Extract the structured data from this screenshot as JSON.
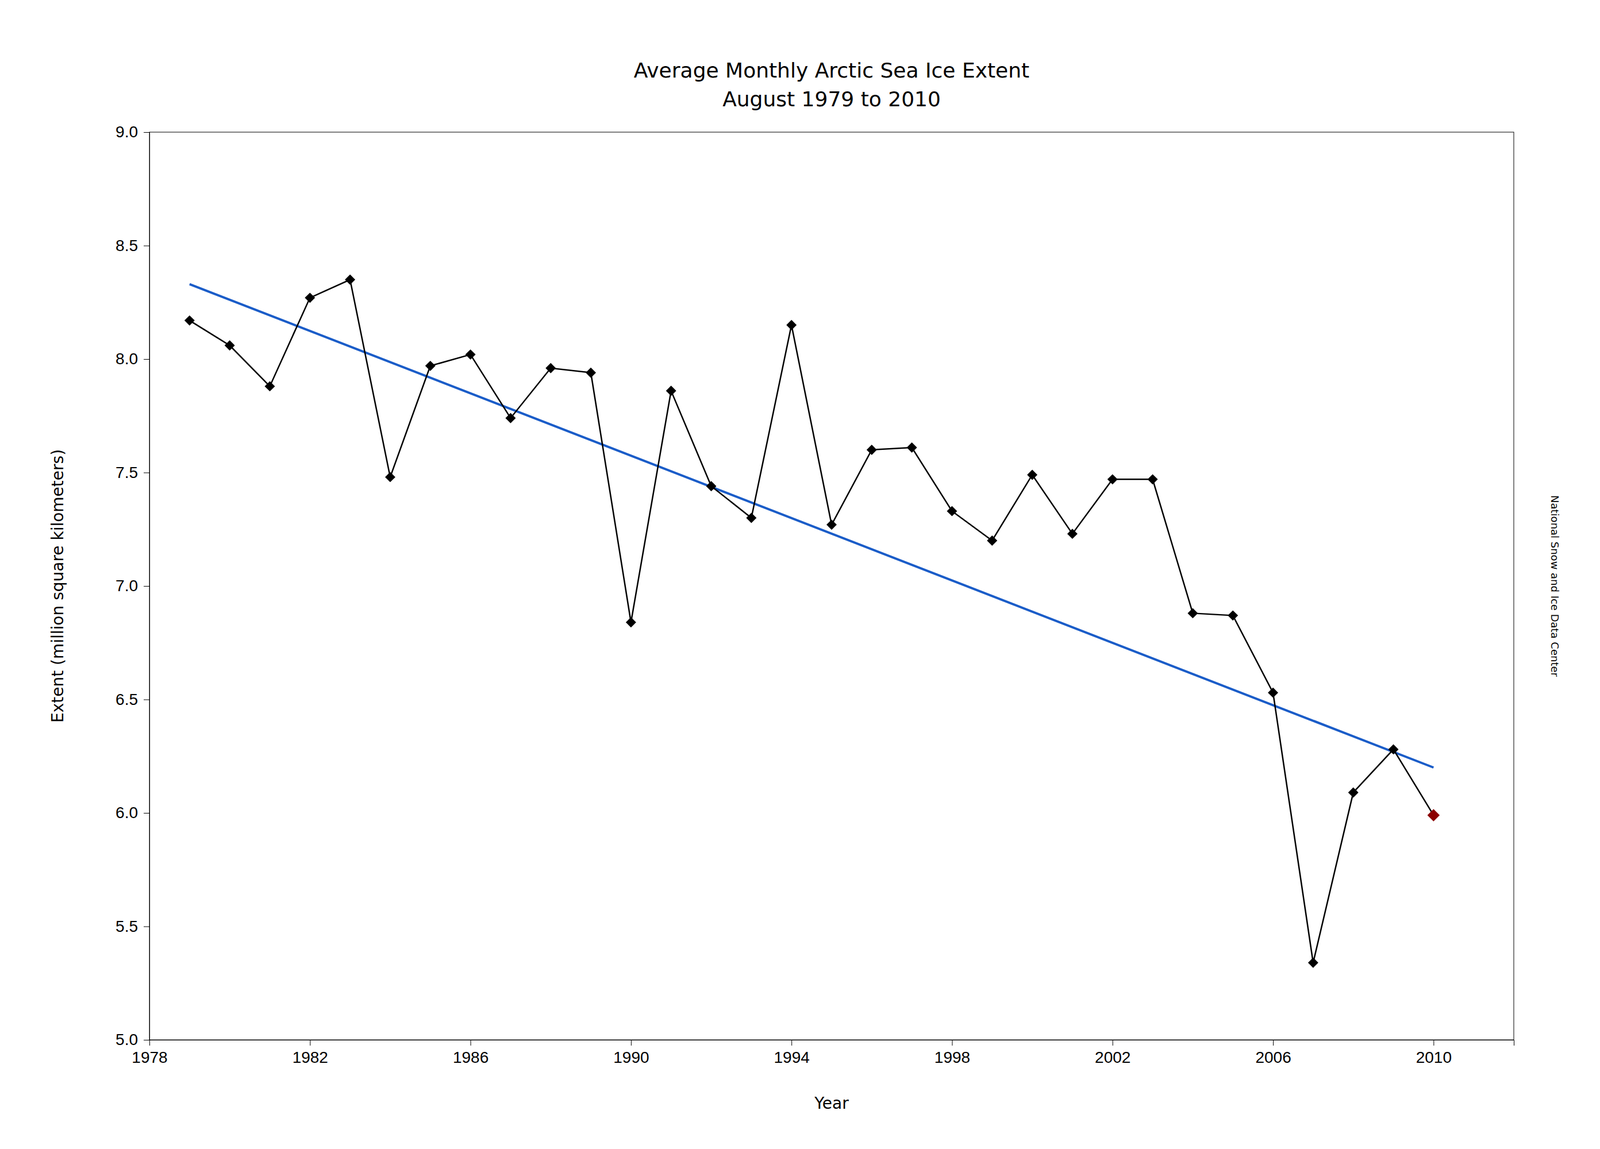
{
  "chart_data": {
    "type": "line",
    "title": "Average Monthly Arctic Sea Ice Extent",
    "subtitle": "August 1979 to 2010",
    "xlabel": "Year",
    "ylabel": "Extent (million square kilometers)",
    "annotations": [
      "National Snow and Ice Data Center"
    ],
    "x": [
      1979,
      1980,
      1981,
      1982,
      1983,
      1984,
      1985,
      1986,
      1987,
      1988,
      1989,
      1990,
      1991,
      1992,
      1993,
      1994,
      1995,
      1996,
      1997,
      1998,
      1999,
      2000,
      2001,
      2002,
      2003,
      2004,
      2005,
      2006,
      2007,
      2008,
      2009,
      2010
    ],
    "series": [
      {
        "type": "line",
        "color": "#000000",
        "marker": "diamond",
        "colors": [
          "#000000",
          "#000000",
          "#000000",
          "#000000",
          "#000000",
          "#000000",
          "#000000",
          "#000000",
          "#000000",
          "#000000",
          "#000000",
          "#000000",
          "#000000",
          "#000000",
          "#000000",
          "#000000",
          "#000000",
          "#000000",
          "#000000",
          "#000000",
          "#000000",
          "#000000",
          "#000000",
          "#000000",
          "#000000",
          "#000000",
          "#000000",
          "#000000",
          "#000000",
          "#000000",
          "#000000",
          "#8b0000"
        ],
        "values": [
          8.17,
          8.06,
          7.88,
          8.27,
          8.35,
          7.48,
          7.97,
          8.02,
          7.74,
          7.96,
          7.94,
          6.84,
          7.86,
          7.44,
          7.3,
          8.15,
          7.27,
          7.6,
          7.61,
          7.33,
          7.2,
          7.49,
          7.23,
          7.47,
          7.47,
          6.88,
          6.87,
          6.53,
          5.34,
          6.09,
          6.28,
          5.99
        ]
      },
      {
        "type": "line",
        "color": "#1a5cc8",
        "x": [
          1979,
          2010
        ],
        "values": [
          8.33,
          6.2
        ]
      }
    ],
    "xlim": [
      1978,
      2012
    ],
    "ylim": [
      5.0,
      9.0
    ],
    "xticks": [
      1978,
      1982,
      1986,
      1990,
      1994,
      1998,
      2002,
      2006,
      2010
    ],
    "yticks": [
      {
        "value": 5.0,
        "label": "5.0"
      },
      5.5,
      {
        "value": 6.0,
        "label": "6.0"
      },
      6.5,
      {
        "value": 7.0,
        "label": "7.0"
      },
      7.5,
      {
        "value": 8.0,
        "label": "8.0"
      },
      8.5,
      {
        "value": 9.0,
        "label": "9.0"
      }
    ],
    "grid": false
  }
}
